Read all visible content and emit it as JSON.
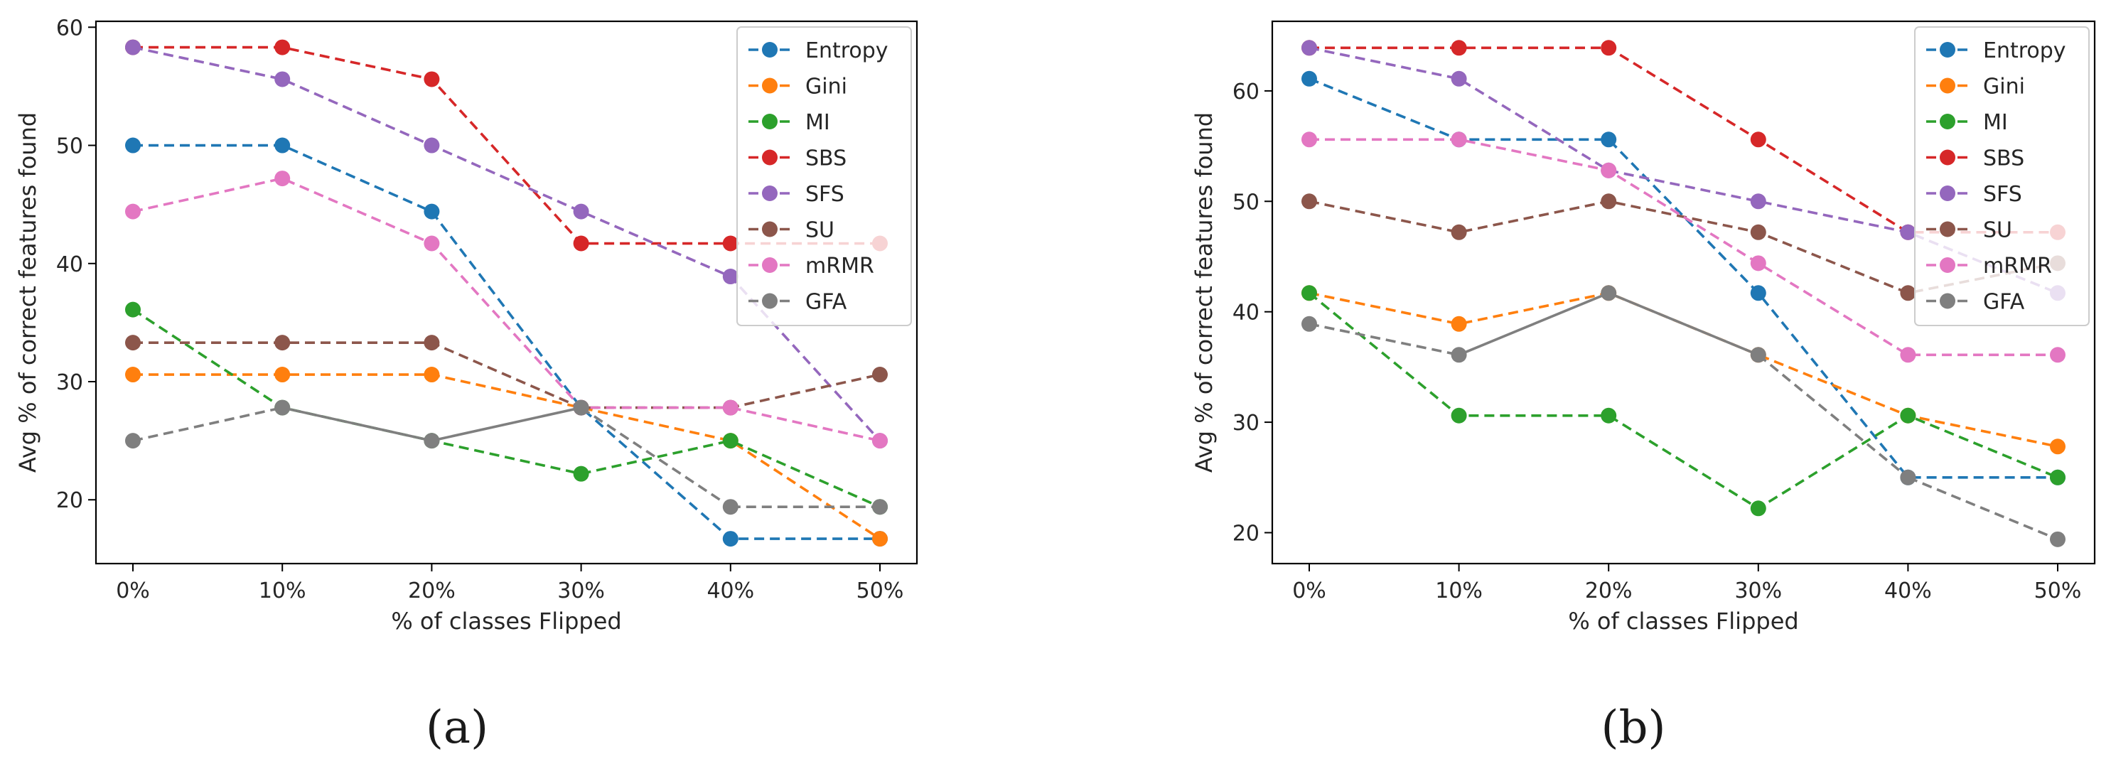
{
  "colors": {
    "Entropy": "#1f77b4",
    "Gini": "#ff7f0e",
    "MI": "#2ca02c",
    "SBS": "#d62728",
    "SFS": "#9467bd",
    "SU": "#8c564b",
    "mRMR": "#e377c2",
    "GFA": "#7f7f7f"
  },
  "chart_data": [
    {
      "type": "line",
      "caption": "(a)",
      "xlabel": "% of classes Flipped",
      "ylabel": "Avg % of correct features found",
      "categories": [
        "0%",
        "10%",
        "20%",
        "30%",
        "40%",
        "50%"
      ],
      "ylim": [
        14.6,
        60.5
      ],
      "yticks": [
        20,
        30,
        40,
        50,
        60
      ],
      "legend_position": "top-right",
      "series": [
        {
          "name": "Entropy",
          "style": "dashed",
          "values": [
            50.0,
            50.0,
            44.4,
            27.8,
            16.7,
            16.7
          ]
        },
        {
          "name": "Gini",
          "style": "dashed",
          "values": [
            30.6,
            30.6,
            30.6,
            27.8,
            25.0,
            16.7
          ]
        },
        {
          "name": "MI",
          "style": "dashed",
          "values": [
            36.1,
            27.8,
            25.0,
            22.2,
            25.0,
            19.4
          ]
        },
        {
          "name": "SBS",
          "style": "dashed",
          "values": [
            58.3,
            58.3,
            55.6,
            41.7,
            41.7,
            41.7
          ]
        },
        {
          "name": "SFS",
          "style": "dashed",
          "values": [
            58.3,
            55.6,
            50.0,
            44.4,
            38.9,
            25.0
          ]
        },
        {
          "name": "SU",
          "style": "dashed",
          "values": [
            33.3,
            33.3,
            33.3,
            27.8,
            27.8,
            30.6
          ]
        },
        {
          "name": "mRMR",
          "style": "dashed",
          "values": [
            44.4,
            47.2,
            41.7,
            27.8,
            27.8,
            25.0
          ]
        },
        {
          "name": "GFA",
          "style": "mixed",
          "values": [
            25.0,
            27.8,
            25.0,
            27.8,
            19.4,
            19.4
          ]
        }
      ]
    },
    {
      "type": "line",
      "caption": "(b)",
      "xlabel": "% of classes Flipped",
      "ylabel": "Avg % of correct features found",
      "categories": [
        "0%",
        "10%",
        "20%",
        "30%",
        "40%",
        "50%"
      ],
      "ylim": [
        17.2,
        66.3
      ],
      "yticks": [
        20,
        30,
        40,
        50,
        60
      ],
      "legend_position": "top-right",
      "series": [
        {
          "name": "Entropy",
          "style": "dashed",
          "values": [
            61.1,
            55.6,
            55.6,
            41.7,
            25.0,
            25.0
          ]
        },
        {
          "name": "Gini",
          "style": "dashed",
          "values": [
            41.7,
            38.9,
            41.7,
            36.1,
            30.6,
            27.8
          ]
        },
        {
          "name": "MI",
          "style": "dashed",
          "values": [
            41.7,
            30.6,
            30.6,
            22.2,
            30.6,
            25.0
          ]
        },
        {
          "name": "SBS",
          "style": "dashed",
          "values": [
            63.9,
            63.9,
            63.9,
            55.6,
            47.2,
            47.2
          ]
        },
        {
          "name": "SFS",
          "style": "dashed",
          "values": [
            63.9,
            61.1,
            52.8,
            50.0,
            47.2,
            41.7
          ]
        },
        {
          "name": "SU",
          "style": "dashed",
          "values": [
            50.0,
            47.2,
            50.0,
            47.2,
            41.7,
            44.4
          ]
        },
        {
          "name": "mRMR",
          "style": "dashed",
          "values": [
            55.6,
            55.6,
            52.8,
            44.4,
            36.1,
            36.1
          ]
        },
        {
          "name": "GFA",
          "style": "mixed",
          "values": [
            38.9,
            36.1,
            41.7,
            36.1,
            25.0,
            19.4
          ]
        }
      ]
    }
  ]
}
